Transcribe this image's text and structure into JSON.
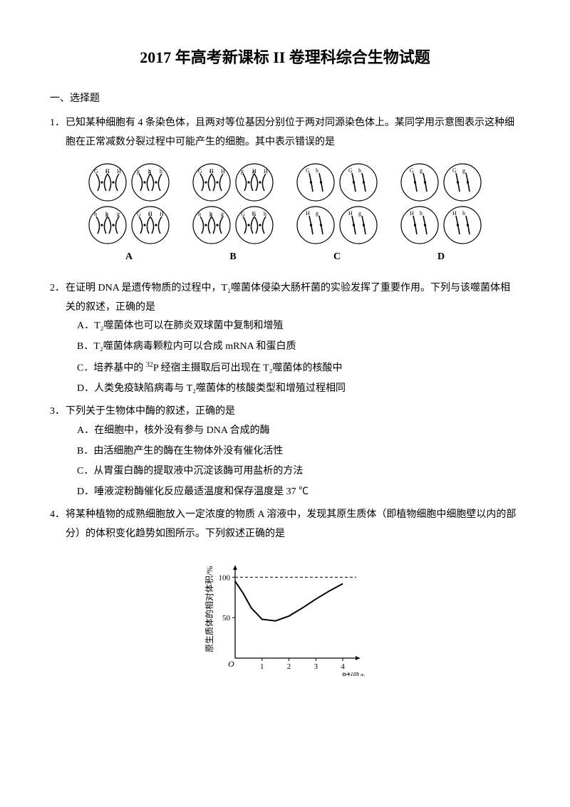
{
  "title": "2017 年高考新课标 II 卷理科综合生物试题",
  "section1": {
    "header": "一、选择题",
    "q1": {
      "num": "1．",
      "line1": "已知某种细胞有 4 条染色体，且两对等位基因分别位于两对同源染色体上。某同学用示意图表示这种细",
      "line2": "胞在正常减数分裂过程中可能产生的细胞。其中表示错误的是",
      "diagrams": [
        {
          "label": "A",
          "topCells": [
            [
              "G",
              "G",
              "H",
              "H"
            ],
            [
              "g",
              "g",
              "h",
              "h"
            ]
          ],
          "botCells": [
            [
              "h",
              "h",
              "g",
              "g"
            ],
            [
              "G",
              "G",
              "H",
              "H"
            ]
          ]
        },
        {
          "label": "B",
          "topCells": [
            [
              "G",
              "G",
              "H",
              "H"
            ],
            [
              "g",
              "g",
              "H",
              "H"
            ]
          ],
          "botCells": [
            [
              "h",
              "h",
              "g",
              "g"
            ],
            [
              "G",
              "G",
              "h",
              "h"
            ]
          ]
        },
        {
          "label": "C",
          "topCells": [
            [
              "G",
              "h"
            ],
            [
              "G",
              "h"
            ]
          ],
          "botCells": [
            [
              "H",
              "g"
            ],
            [
              "H",
              "g"
            ]
          ]
        },
        {
          "label": "D",
          "topCells": [
            [
              "G",
              "g"
            ],
            [
              "G",
              "g"
            ]
          ],
          "botCells": [
            [
              "H",
              "h"
            ],
            [
              "H",
              "h"
            ]
          ]
        }
      ]
    },
    "q2": {
      "num": "2．",
      "line1": "在证明 DNA 是遗传物质的过程中，T₂噬菌体侵染大肠杆菌的实验发挥了重要作用。下列与该噬菌体相",
      "line2": "关的叙述，正确的是",
      "optA": "A．T₂噬菌体也可以在肺炎双球菌中复制和增殖",
      "optB": "B．T₂噬菌体病毒颗粒内可以合成 mRNA 和蛋白质",
      "optC_pre": "C．培养基中的 ",
      "optC_sup": "32",
      "optC_post": "P 经宿主摄取后可出现在 T₂噬菌体的核酸中",
      "optD": "D．人类免疫缺陷病毒与 T₂噬菌体的核酸类型和增殖过程相同"
    },
    "q3": {
      "num": "3．",
      "stem": "下列关于生物体中酶的叙述，正确的是",
      "optA": "A．在细胞中，核外没有参与 DNA 合成的酶",
      "optB": "B．由活细胞产生的酶在生物体外没有催化活性",
      "optC": "C．从胃蛋白酶的提取液中沉淀该酶可用盐析的方法",
      "optD": "D．唾液淀粉酶催化反应最适温度和保存温度是 37 ℃"
    },
    "q4": {
      "num": "4．",
      "line1": "将某种植物的成熟细胞放入一定浓度的物质 A 溶液中，发现其原生质体（即植物细胞中细胞壁以内的部",
      "line2": "分）的体积变化趋势如图所示。下列叙述正确的是",
      "chart": {
        "ylabel": "原生质体的相对体积/%",
        "xlabel": "时间/h",
        "y_ticks": [
          50,
          100
        ],
        "x_ticks": [
          1,
          2,
          3,
          4
        ],
        "y_max": 110,
        "x_max": 4.5,
        "dash_y": 100,
        "curve": [
          [
            0,
            95
          ],
          [
            0.3,
            80
          ],
          [
            0.6,
            62
          ],
          [
            1.0,
            48
          ],
          [
            1.5,
            46
          ],
          [
            2.0,
            52
          ],
          [
            2.5,
            62
          ],
          [
            3.0,
            73
          ],
          [
            3.5,
            83
          ],
          [
            4.0,
            92
          ]
        ],
        "line_color": "#000000",
        "bg_color": "#ffffff",
        "axis_color": "#000000"
      }
    }
  }
}
